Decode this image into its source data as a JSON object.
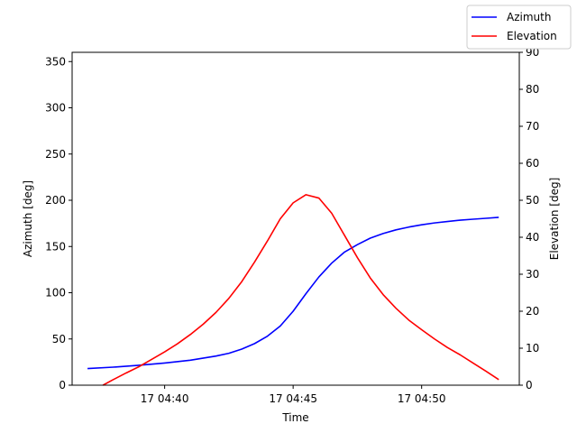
{
  "chart_data": {
    "type": "line",
    "xlabel": "Time",
    "ylabel_left": "Azimuth [deg]",
    "ylabel_right": "Elevation [deg]",
    "x_ticks": [
      "17 04:40",
      "17 04:45",
      "17 04:50"
    ],
    "x_tick_minutes": [
      40,
      45,
      50
    ],
    "xlim_minutes": [
      36.4,
      53.8
    ],
    "ylim_left": [
      0,
      360
    ],
    "ylim_right": [
      0,
      90
    ],
    "y_ticks_left": [
      "0",
      "50",
      "100",
      "150",
      "200",
      "250",
      "300",
      "350"
    ],
    "y_tick_values_left": [
      0,
      50,
      100,
      150,
      200,
      250,
      300,
      350
    ],
    "y_ticks_right": [
      "0",
      "10",
      "20",
      "30",
      "40",
      "50",
      "60",
      "70",
      "80",
      "90"
    ],
    "y_tick_values_right": [
      0,
      10,
      20,
      30,
      40,
      50,
      60,
      70,
      80,
      90
    ],
    "grid": false,
    "legend_position": "top-right",
    "series": [
      {
        "name": "Azimuth",
        "axis": "left",
        "color": "#0000ff",
        "x_minutes": [
          37.0,
          38.0,
          39.0,
          40.0,
          41.0,
          42.0,
          42.5,
          43.0,
          43.5,
          44.0,
          44.5,
          45.0,
          45.5,
          46.0,
          46.5,
          47.0,
          47.5,
          48.0,
          48.5,
          49.0,
          49.5,
          50.0,
          50.5,
          51.0,
          51.5,
          52.0,
          52.5,
          53.0
        ],
        "values": [
          18,
          19.5,
          21.5,
          24,
          27,
          31.5,
          34.5,
          39,
          45,
          53,
          64,
          80,
          99,
          117,
          132,
          144,
          152,
          159,
          164,
          168,
          171,
          173.5,
          175.5,
          177,
          178.5,
          179.5,
          180.5,
          181.5
        ]
      },
      {
        "name": "Elevation",
        "axis": "right",
        "color": "#ff0000",
        "x_minutes": [
          37.6,
          38.0,
          38.5,
          39.0,
          39.5,
          40.0,
          40.5,
          41.0,
          41.5,
          42.0,
          42.5,
          43.0,
          43.5,
          44.0,
          44.5,
          45.0,
          45.5,
          46.0,
          46.5,
          47.0,
          47.5,
          48.0,
          48.5,
          49.0,
          49.5,
          50.0,
          50.5,
          51.0,
          51.5,
          52.0,
          52.5,
          53.0
        ],
        "values": [
          0,
          1.5,
          3.3,
          5.0,
          7.0,
          9.0,
          11.2,
          13.7,
          16.5,
          19.7,
          23.5,
          28.0,
          33.3,
          39.0,
          45.0,
          49.3,
          51.5,
          50.6,
          46.5,
          40.5,
          34.5,
          29.0,
          24.5,
          20.8,
          17.6,
          15.0,
          12.5,
          10.2,
          8.2,
          6.0,
          3.8,
          1.5
        ]
      }
    ]
  }
}
